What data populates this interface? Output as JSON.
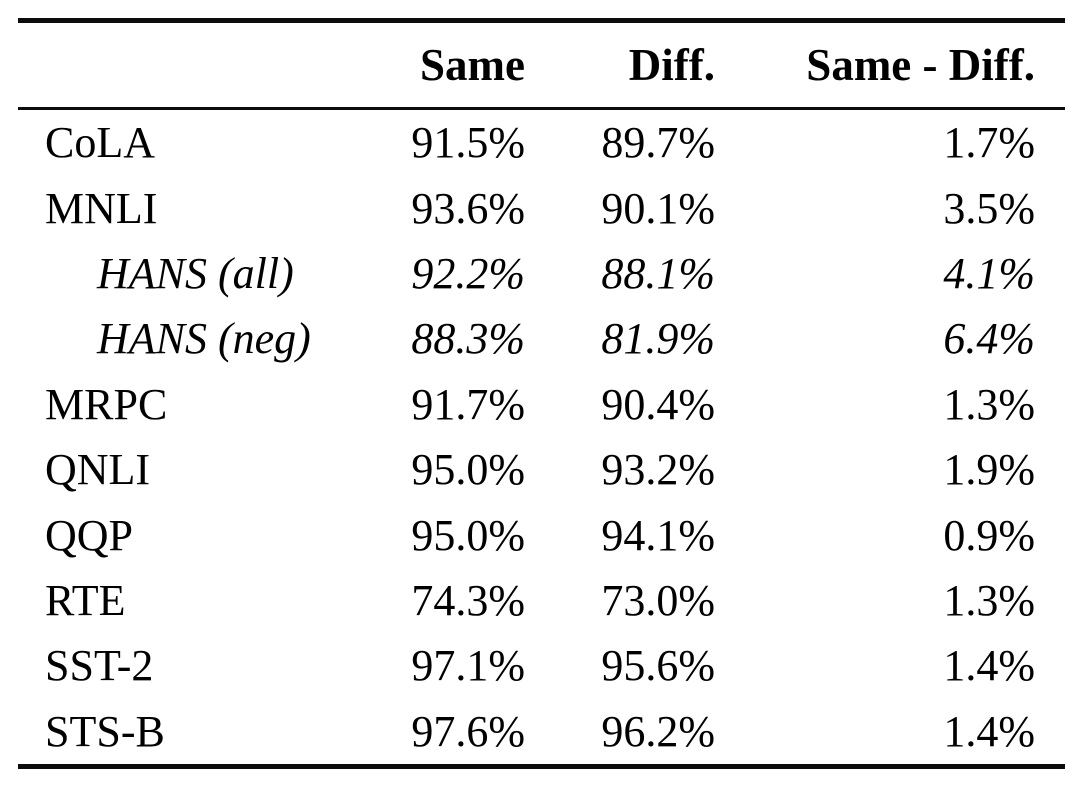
{
  "table": {
    "background": "#ffffff",
    "text_color": "#000000",
    "rule_color": "#0c0c0c",
    "columns": {
      "label": "",
      "same": "Same",
      "diff": "Diff.",
      "delta": "Same - Diff."
    },
    "rows": [
      {
        "label": "CoLA",
        "same": "91.5%",
        "diff": "89.7%",
        "delta": "1.7%",
        "style": "normal"
      },
      {
        "label": "MNLI",
        "same": "93.6%",
        "diff": "90.1%",
        "delta": "3.5%",
        "style": "normal"
      },
      {
        "label": "HANS (all)",
        "same": "92.2%",
        "diff": "88.1%",
        "delta": "4.1%",
        "style": "italic-indented"
      },
      {
        "label": "HANS (neg)",
        "same": "88.3%",
        "diff": "81.9%",
        "delta": "6.4%",
        "style": "italic-indented"
      },
      {
        "label": "MRPC",
        "same": "91.7%",
        "diff": "90.4%",
        "delta": "1.3%",
        "style": "normal"
      },
      {
        "label": "QNLI",
        "same": "95.0%",
        "diff": "93.2%",
        "delta": "1.9%",
        "style": "normal"
      },
      {
        "label": "QQP",
        "same": "95.0%",
        "diff": "94.1%",
        "delta": "0.9%",
        "style": "normal"
      },
      {
        "label": "RTE",
        "same": "74.3%",
        "diff": "73.0%",
        "delta": "1.3%",
        "style": "normal"
      },
      {
        "label": "SST-2",
        "same": "97.1%",
        "diff": "95.6%",
        "delta": "1.4%",
        "style": "normal"
      },
      {
        "label": "STS-B",
        "same": "97.6%",
        "diff": "96.2%",
        "delta": "1.4%",
        "style": "normal"
      }
    ]
  },
  "chart_data": {
    "type": "table",
    "title": "",
    "categories": [
      "CoLA",
      "MNLI",
      "HANS (all)",
      "HANS (neg)",
      "MRPC",
      "QNLI",
      "QQP",
      "RTE",
      "SST-2",
      "STS-B"
    ],
    "series": [
      {
        "name": "Same",
        "values": [
          91.5,
          93.6,
          92.2,
          88.3,
          91.7,
          95.0,
          95.0,
          74.3,
          97.1,
          97.6
        ]
      },
      {
        "name": "Diff.",
        "values": [
          89.7,
          90.1,
          88.1,
          81.9,
          90.4,
          93.2,
          94.1,
          73.0,
          95.6,
          96.2
        ]
      },
      {
        "name": "Same - Diff.",
        "values": [
          1.7,
          3.5,
          4.1,
          6.4,
          1.3,
          1.9,
          0.9,
          1.3,
          1.4,
          1.4
        ]
      }
    ],
    "units": "%"
  }
}
